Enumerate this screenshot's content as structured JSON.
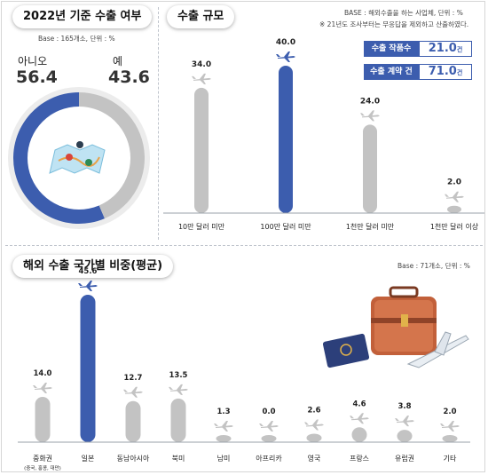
{
  "colors": {
    "gray": "#c3c3c3",
    "blue": "#3c5dae",
    "text": "#222222"
  },
  "left_panel": {
    "title": "2022년 기준 수출 여부",
    "base": "Base : 165개소, 단위 : %",
    "no_label": "아니오",
    "no_value": "56.4",
    "yes_label": "예",
    "yes_value": "43.6"
  },
  "right_panel": {
    "title": "수출 규모",
    "base": "BASE : 해외수출을 하는 사업체, 단위 : %",
    "note": "※ 21년도 조사부터는 무응답을 제외하고 산출하였다.",
    "kpis": [
      {
        "label": "수출 작품수",
        "value": "21.0",
        "unit": "건"
      },
      {
        "label": "수출 계약 건수",
        "value": "71.0",
        "unit": "건"
      }
    ]
  },
  "bottom_panel": {
    "title": "해외 수출 국가별 비중(평균)",
    "base": "Base : 71개소, 단위 : %"
  },
  "chart_data": [
    {
      "type": "pie",
      "title": "2022년 기준 수출 여부",
      "slices": [
        {
          "label": "아니오",
          "value": 56.4,
          "color": "#3c5dae"
        },
        {
          "label": "예",
          "value": 43.6,
          "color": "#c3c3c3"
        }
      ]
    },
    {
      "type": "bar",
      "title": "수출 규모",
      "categories": [
        "10만 달러 미만",
        "100만 달러 미만",
        "1천만 달러 미만",
        "1천만 달러 이상"
      ],
      "values": [
        34.0,
        40.0,
        24.0,
        2.0
      ],
      "value_labels": [
        "34.0",
        "40.0",
        "24.0",
        "2.0"
      ],
      "highlight_index": 1,
      "ylim": [
        0,
        40
      ]
    },
    {
      "type": "bar",
      "title": "해외 수출 국가별 비중(평균)",
      "categories": [
        "중화권",
        "일본",
        "동남아시아",
        "북미",
        "남미",
        "아프리카",
        "영국",
        "프랑스",
        "유럽권",
        "기타"
      ],
      "sub_labels": [
        "(중국, 홍콩, 대만)",
        "",
        "",
        "",
        "",
        "",
        "",
        "",
        "",
        ""
      ],
      "values": [
        14.0,
        45.6,
        12.7,
        13.5,
        1.3,
        0.0,
        2.6,
        4.6,
        3.8,
        2.0
      ],
      "value_labels": [
        "14.0",
        "45.6",
        "12.7",
        "13.5",
        "1.3",
        "0.0",
        "2.6",
        "4.6",
        "3.8",
        "2.0"
      ],
      "highlight_index": 1,
      "ylim": [
        0,
        45.6
      ]
    }
  ]
}
